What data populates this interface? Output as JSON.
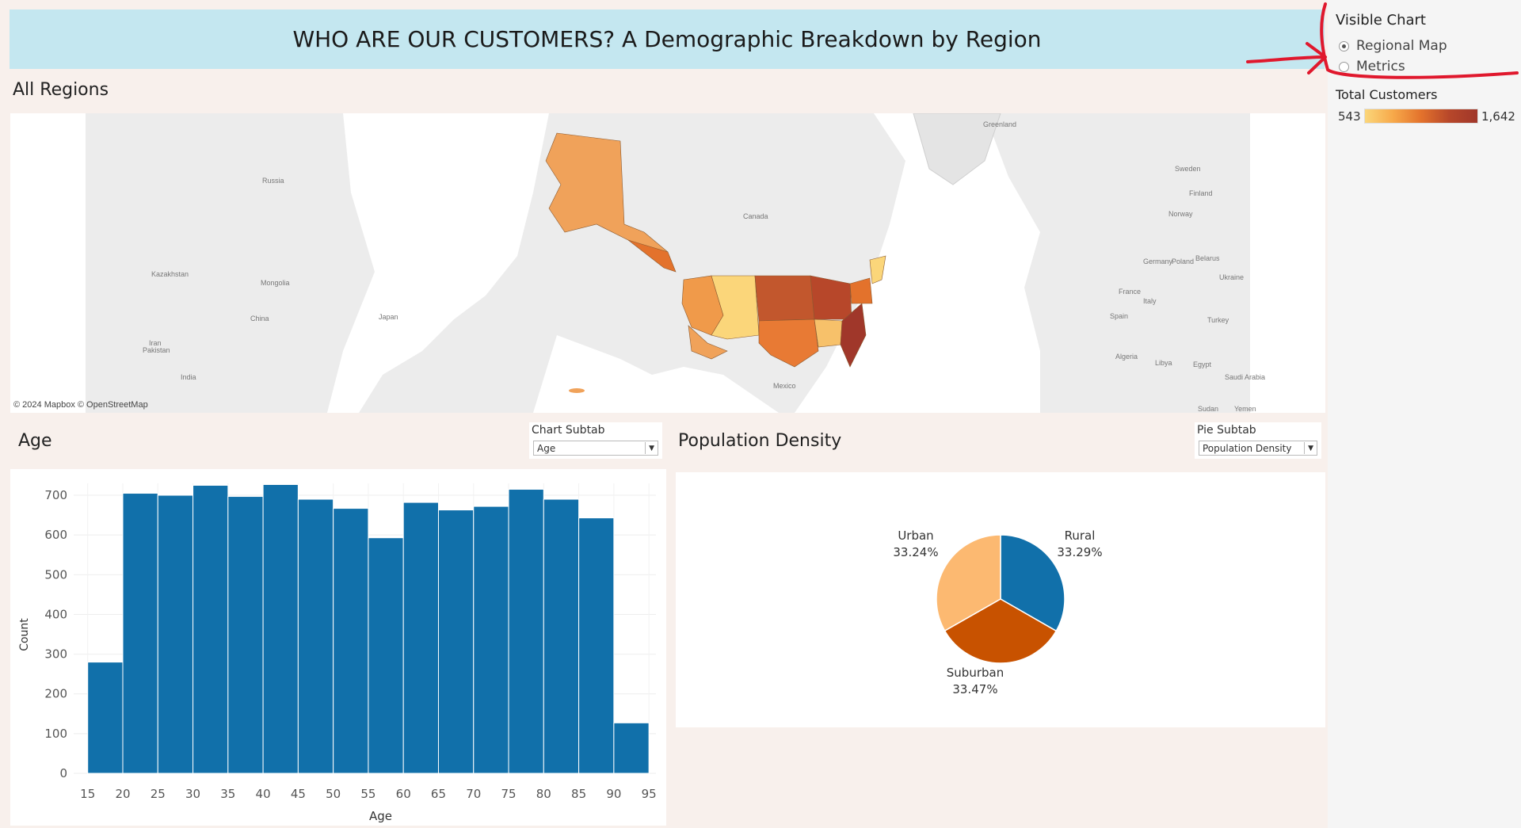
{
  "header": {
    "title": "WHO ARE OUR CUSTOMERS? A Demographic Breakdown by Region"
  },
  "map_section": {
    "title": "All Regions",
    "attribution": "© 2024 Mapbox © OpenStreetMap",
    "place_labels": [
      "Russia",
      "Kazakhstan",
      "Mongolia",
      "China",
      "Japan",
      "Pakistan",
      "India",
      "Iran",
      "Canada",
      "Greenland",
      "Mexico",
      "Sweden",
      "Finland",
      "Norway",
      "Germany",
      "Poland",
      "Belarus",
      "Ukraine",
      "France",
      "Italy",
      "Spain",
      "Turkey",
      "Algeria",
      "Libya",
      "Egypt",
      "Saudi Arabia",
      "Sudan",
      "Yemen"
    ],
    "colors": {
      "low": "#fbd67a",
      "mid_low": "#f7a94a",
      "mid": "#e3722c",
      "high": "#b7472a",
      "max": "#a0372a"
    }
  },
  "age_section": {
    "title": "Age",
    "subtab_label": "Chart Subtab",
    "subtab_value": "Age"
  },
  "population_section": {
    "title": "Population Density",
    "subtab_label": "Pie Subtab",
    "subtab_value": "Population Density"
  },
  "sidebar": {
    "visible_chart_title": "Visible Chart",
    "options": [
      {
        "label": "Regional Map",
        "selected": true
      },
      {
        "label": "Metrics",
        "selected": false
      }
    ],
    "legend": {
      "title": "Total Customers",
      "min": "543",
      "max": "1,642"
    }
  },
  "chart_data": [
    {
      "type": "bar",
      "title": "",
      "xlabel": "Age",
      "ylabel": "Count",
      "x_ticks": [
        "15",
        "20",
        "25",
        "30",
        "35",
        "40",
        "45",
        "50",
        "55",
        "60",
        "65",
        "70",
        "75",
        "80",
        "85",
        "90",
        "95"
      ],
      "y_ticks": [
        "0",
        "100",
        "200",
        "300",
        "400",
        "500",
        "600",
        "700"
      ],
      "bins_start": [
        15,
        20,
        25,
        30,
        35,
        40,
        45,
        50,
        55,
        60,
        65,
        70,
        75,
        80,
        85,
        90
      ],
      "values": [
        280,
        705,
        700,
        725,
        697,
        727,
        690,
        667,
        593,
        682,
        663,
        672,
        715,
        690,
        643,
        127
      ],
      "ylim": [
        0,
        730
      ],
      "xlim": [
        13,
        96
      ],
      "color": "#1170aa",
      "grid": true
    },
    {
      "type": "pie",
      "title": "",
      "slices": [
        {
          "label": "Rural",
          "percent_label": "33.29%",
          "value": 33.29,
          "color": "#1170aa"
        },
        {
          "label": "Suburban",
          "percent_label": "33.47%",
          "value": 33.47,
          "color": "#c85200"
        },
        {
          "label": "Urban",
          "percent_label": "33.24%",
          "value": 33.24,
          "color": "#fcb971"
        }
      ]
    }
  ]
}
